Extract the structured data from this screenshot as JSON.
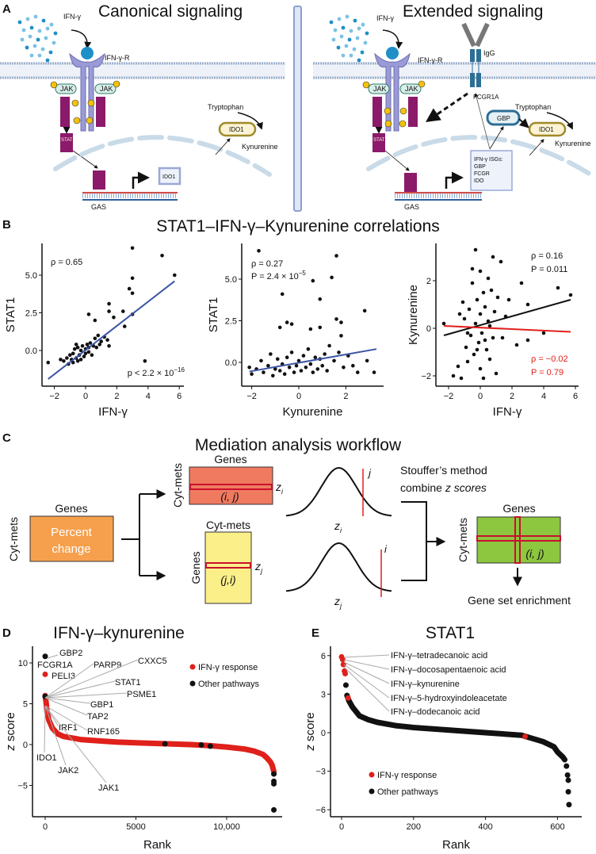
{
  "panel_a": {
    "letter": "A",
    "left_title": "Canonical signaling",
    "right_title": "Extended signaling",
    "ifng": "IFN-γ",
    "ifngr": "IFN-γ-R",
    "jak": "JAK",
    "stat1": "STAT1",
    "p": "P",
    "tryptophan": "Tryptophan",
    "ido1": "IDO1",
    "kynurenine": "Kynurenine",
    "gas": "GAS",
    "igg": "IgG",
    "fcgr1a": "FCGR1A",
    "gbp": "GBP",
    "isgs": [
      "IFN-γ ISGs:",
      "GBP",
      "FCGR",
      "IDO"
    ],
    "colors": {
      "receptor": "#9a9ad6",
      "ifng": "#1f8fc8",
      "stat": "#8b1a6b",
      "ido_border": "#a08a2a",
      "fcgr": "#2d6e94",
      "nucleus": "#c9dbe8"
    }
  },
  "panel_b": {
    "letter": "B",
    "title": "STAT1–IFN-γ–Kynurenine correlations"
  },
  "panel_c": {
    "letter": "C",
    "title": "Mediation analysis workflow",
    "genes": "Genes",
    "cyt_mets": "Cyt-mets",
    "percent_change": [
      "Percent",
      "change"
    ],
    "ij": "(i, j)",
    "ji": "(j,i)",
    "zi": "z",
    "zi_sub": "i",
    "zj_sub": "j",
    "i": "i",
    "j": "j",
    "stouffer": [
      "Stouffer’s method",
      "combine "
    ],
    "z_scores": "z scores",
    "enrichment": "Gene set enrichment",
    "colors": {
      "orange": "#f6a04d",
      "red": "#f07a60",
      "yellow": "#fbef8a",
      "green": "#8dc63f",
      "highlight": "#c8102e"
    }
  },
  "panel_d": {
    "letter": "D",
    "title": "IFN-γ–kynurenine"
  },
  "panel_e": {
    "letter": "E",
    "title": "STAT1"
  },
  "chart_data": [
    {
      "id": "b1",
      "type": "scatter",
      "xlabel": "IFN-γ",
      "ylabel": "STAT1",
      "xticks": [
        -2,
        0,
        2,
        4,
        6
      ],
      "yticks": [
        0.0,
        2.5,
        5.0
      ],
      "ytick_labels": [
        "0.0",
        "2.5",
        "5.0"
      ],
      "xlim": [
        -2.5,
        6
      ],
      "ylim": [
        -2.4,
        7
      ],
      "annotations": [
        {
          "text": "ρ = 0.65",
          "color": "#111"
        },
        {
          "text": "p < 2.2 × 10",
          "sup": "−16",
          "color": "#111"
        }
      ],
      "fit_lines": [
        {
          "color": "#3b55a5",
          "points": [
            [
              -2.4,
              -1.9
            ],
            [
              5.7,
              4.6
            ]
          ]
        }
      ],
      "points": [
        [
          -2.4,
          -0.8
        ],
        [
          -1.4,
          -0.7
        ],
        [
          -1.2,
          -0.5
        ],
        [
          -1.1,
          -0.9
        ],
        [
          -1,
          -0.3
        ],
        [
          -0.9,
          -0.6
        ],
        [
          -0.8,
          -0.8
        ],
        [
          -0.8,
          -0.2
        ],
        [
          -0.7,
          0.1
        ],
        [
          -0.6,
          -0.5
        ],
        [
          -0.5,
          -0.7
        ],
        [
          -0.5,
          0.2
        ],
        [
          -0.4,
          -0.3
        ],
        [
          -0.3,
          0
        ],
        [
          -0.3,
          -0.6
        ],
        [
          -0.2,
          0.3
        ],
        [
          -0.1,
          -0.4
        ],
        [
          0,
          0.1
        ],
        [
          0,
          -0.2
        ],
        [
          0.1,
          0.4
        ],
        [
          0.2,
          -0.1
        ],
        [
          0.2,
          0.2
        ],
        [
          0.3,
          0.5
        ],
        [
          0.4,
          -0.3
        ],
        [
          0.5,
          0.3
        ],
        [
          0.6,
          0.8
        ],
        [
          0.7,
          0.2
        ],
        [
          0.8,
          1
        ],
        [
          1,
          0.6
        ],
        [
          1.2,
          0.9
        ],
        [
          1.4,
          0.7
        ],
        [
          1.5,
          0.3
        ],
        [
          0.2,
          2.4
        ],
        [
          0.6,
          2
        ],
        [
          1.5,
          3.1
        ],
        [
          1.5,
          2.6
        ],
        [
          1.8,
          2.2
        ],
        [
          2.4,
          2.6
        ],
        [
          2.5,
          1.6
        ],
        [
          3,
          2.4
        ],
        [
          2.8,
          4.1
        ],
        [
          3,
          3.8
        ],
        [
          3,
          4.8
        ],
        [
          3,
          6.8
        ],
        [
          4.9,
          6.3
        ],
        [
          5.7,
          5.0
        ],
        [
          3.8,
          -0.7
        ],
        [
          -1.6,
          -0.6
        ],
        [
          -0.6,
          0.4
        ],
        [
          0.9,
          0.4
        ]
      ]
    },
    {
      "id": "b2",
      "type": "scatter",
      "xlabel": "Kynurenine",
      "ylabel": "STAT1",
      "xticks": [
        -2,
        0,
        2
      ],
      "yticks": [
        0.0,
        2.5,
        5.0
      ],
      "ytick_labels": [
        "0.0",
        "2.5",
        "5.0"
      ],
      "xlim": [
        -2.2,
        3.4
      ],
      "ylim": [
        -1.4,
        7
      ],
      "annotations": [
        {
          "text": "ρ = 0.27",
          "color": "#111"
        },
        {
          "text": "P = 2.4 × 10",
          "sup": "−5",
          "color": "#111"
        }
      ],
      "fit_lines": [
        {
          "color": "#3b55a5",
          "points": [
            [
              -2.1,
              -0.55
            ],
            [
              3.3,
              0.8
            ]
          ]
        }
      ],
      "points": [
        [
          -2.1,
          -0.3
        ],
        [
          -2,
          -0.7
        ],
        [
          -1.8,
          -0.4
        ],
        [
          -1.6,
          0.1
        ],
        [
          -1.5,
          -0.6
        ],
        [
          -1.3,
          -0.2
        ],
        [
          -1.2,
          0.5
        ],
        [
          -1.1,
          -0.8
        ],
        [
          -1,
          -0.4
        ],
        [
          -0.9,
          0.2
        ],
        [
          -0.8,
          -0.5
        ],
        [
          -0.7,
          -0.1
        ],
        [
          -0.6,
          -0.7
        ],
        [
          -0.5,
          0.3
        ],
        [
          -0.4,
          -0.3
        ],
        [
          -0.3,
          0.6
        ],
        [
          -0.2,
          -0.6
        ],
        [
          -0.1,
          -0.2
        ],
        [
          0,
          0.1
        ],
        [
          0.1,
          -0.5
        ],
        [
          0.2,
          0.4
        ],
        [
          0.3,
          -0.3
        ],
        [
          0.4,
          0.8
        ],
        [
          0.5,
          -0.1
        ],
        [
          0.6,
          -0.6
        ],
        [
          0.7,
          0.3
        ],
        [
          0.8,
          -0.4
        ],
        [
          0.9,
          0.2
        ],
        [
          1,
          -0.2
        ],
        [
          1.1,
          0.5
        ],
        [
          1.2,
          -0.5
        ],
        [
          1.3,
          1
        ],
        [
          1.5,
          0.1
        ],
        [
          1.7,
          0.6
        ],
        [
          1.9,
          -0.3
        ],
        [
          2.1,
          0.4
        ],
        [
          2.3,
          -0.2
        ],
        [
          2.5,
          -0.6
        ],
        [
          -1.7,
          6.7
        ],
        [
          1.6,
          6.4
        ],
        [
          1.4,
          5.1
        ],
        [
          0.6,
          4.9
        ],
        [
          -0.7,
          4.1
        ],
        [
          0.9,
          3.8
        ],
        [
          -0.5,
          2.4
        ],
        [
          -0.3,
          2.3
        ],
        [
          -0.8,
          2.1
        ],
        [
          0.5,
          2.0
        ],
        [
          0.9,
          2.1
        ],
        [
          1.6,
          2.6
        ],
        [
          1.8,
          2.4
        ],
        [
          1.8,
          1.6
        ],
        [
          2.8,
          3.1
        ],
        [
          3.2,
          -0.6
        ],
        [
          2.9,
          0.1
        ]
      ]
    },
    {
      "id": "b3",
      "type": "scatter",
      "xlabel": "IFN-γ",
      "ylabel": "Kynurenine",
      "xticks": [
        -2,
        0,
        2,
        4,
        6
      ],
      "yticks": [
        -2,
        0,
        2
      ],
      "ytick_labels": [
        "−2",
        "0",
        "2"
      ],
      "xlim": [
        -2.5,
        6
      ],
      "ylim": [
        -2.4,
        3.6
      ],
      "annotations": [
        {
          "text": "ρ = 0.16",
          "color": "#111"
        },
        {
          "text": "P = 0.011",
          "color": "#111"
        },
        {
          "text": "ρ = −0.02",
          "color": "#e0201b"
        },
        {
          "text": "P = 0.79",
          "color": "#e0201b"
        }
      ],
      "fit_lines": [
        {
          "color": "#111111",
          "points": [
            [
              -2.3,
              -0.3
            ],
            [
              5.7,
              1.2
            ]
          ]
        },
        {
          "color": "#e0201b",
          "points": [
            [
              -2.3,
              0.1
            ],
            [
              5.7,
              -0.15
            ]
          ]
        }
      ],
      "points": [
        [
          -1.7,
          -2
        ],
        [
          -1.4,
          -1.6
        ],
        [
          -1.2,
          -2.1
        ],
        [
          -1.1,
          1.1
        ],
        [
          -1,
          0.4
        ],
        [
          -0.9,
          -0.8
        ],
        [
          -0.8,
          -1.4
        ],
        [
          -0.7,
          0.8
        ],
        [
          -0.6,
          -0.3
        ],
        [
          -0.5,
          1.9
        ],
        [
          -0.5,
          2.5
        ],
        [
          -0.4,
          -1.1
        ],
        [
          -0.3,
          0.2
        ],
        [
          -0.3,
          3.3
        ],
        [
          -0.2,
          1.2
        ],
        [
          -0.1,
          -0.6
        ],
        [
          0,
          2.4
        ],
        [
          0,
          0.6
        ],
        [
          0,
          -1.7
        ],
        [
          0.1,
          -0.2
        ],
        [
          0.2,
          1.5
        ],
        [
          0.2,
          -2.1
        ],
        [
          0.3,
          0.9
        ],
        [
          0.4,
          -0.9
        ],
        [
          0.5,
          0.3
        ],
        [
          0.5,
          2.1
        ],
        [
          0.6,
          -1.3
        ],
        [
          0.7,
          1.6
        ],
        [
          0.8,
          -0.4
        ],
        [
          0.8,
          3
        ],
        [
          0.9,
          0.7
        ],
        [
          1,
          -1.9
        ],
        [
          1.1,
          1.3
        ],
        [
          1.3,
          2.8
        ],
        [
          1.4,
          -0.4
        ],
        [
          1.6,
          0.5
        ],
        [
          2.3,
          -0.7
        ],
        [
          2.6,
          1.9
        ],
        [
          3,
          1
        ],
        [
          3,
          -0.5
        ],
        [
          4,
          -0.2
        ],
        [
          4.9,
          1.7
        ],
        [
          5.7,
          1.4
        ],
        [
          -2.3,
          0.2
        ],
        [
          -1.3,
          0.6
        ],
        [
          -0.8,
          -0.2
        ],
        [
          0.3,
          -0.5
        ],
        [
          1.8,
          1.2
        ],
        [
          -0.2,
          -0.9
        ],
        [
          0.6,
          0.1
        ]
      ]
    },
    {
      "id": "d",
      "type": "scatter",
      "title": "IFN-γ–kynurenine",
      "xlabel": "Rank",
      "ylabel": "z score",
      "xticks": [
        0,
        5000,
        10000
      ],
      "xtick_labels": [
        "0",
        "5000",
        "10,000"
      ],
      "yticks": [
        -5,
        0,
        5,
        10
      ],
      "ytick_labels": [
        "−5",
        "0",
        "5",
        "10"
      ],
      "xlim": [
        -700,
        13100
      ],
      "ylim": [
        -8.9,
        11.8
      ],
      "legend": {
        "position": "top-right",
        "entries": [
          {
            "label": "IFN-γ response",
            "color": "#e0201b"
          },
          {
            "label": "Other pathways",
            "color": "#111111"
          }
        ]
      },
      "curve": [
        [
          0,
          6
        ],
        [
          30,
          5.5
        ],
        [
          60,
          5
        ],
        [
          100,
          4
        ],
        [
          200,
          3
        ],
        [
          400,
          2
        ],
        [
          700,
          1.3
        ],
        [
          1000,
          1
        ],
        [
          2000,
          0.6
        ],
        [
          3000,
          0.45
        ],
        [
          4000,
          0.3
        ],
        [
          5000,
          0.22
        ],
        [
          6000,
          0.15
        ],
        [
          7000,
          0.08
        ],
        [
          8000,
          0
        ],
        [
          9000,
          -0.12
        ],
        [
          10000,
          -0.3
        ],
        [
          11000,
          -0.55
        ],
        [
          11500,
          -0.8
        ],
        [
          12000,
          -1.2
        ],
        [
          12200,
          -1.6
        ],
        [
          12400,
          -2.1
        ],
        [
          12500,
          -2.5
        ],
        [
          12600,
          -3.3
        ]
      ],
      "points": [
        {
          "rank": 0,
          "z": 10.8,
          "group": "Other pathways"
        },
        {
          "rank": 0,
          "z": 8.6,
          "group": "IFN-γ response"
        },
        {
          "rank": 0,
          "z": 5.9,
          "group": "Other pathways"
        },
        {
          "rank": 6600,
          "z": 0.1,
          "group": "Other pathways"
        },
        {
          "rank": 8600,
          "z": -0.05,
          "group": "Other pathways"
        },
        {
          "rank": 9100,
          "z": -0.2,
          "group": "Other pathways"
        },
        {
          "rank": 12600,
          "z": -3.6,
          "group": "Other pathways"
        },
        {
          "rank": 12600,
          "z": -4.5,
          "group": "Other pathways"
        },
        {
          "rank": 12600,
          "z": -4.8,
          "group": "Other pathways"
        },
        {
          "rank": 12600,
          "z": -8.0,
          "group": "Other pathways"
        }
      ],
      "gene_labels": [
        "GBP2",
        "FCGR1A",
        "PELI3",
        "PARP9",
        "CXXC5",
        "STAT1",
        "PSME1",
        "GBP1",
        "TAP2",
        "IRF1",
        "RNF165",
        "IDO1",
        "JAK2",
        "JAK1"
      ]
    },
    {
      "id": "e",
      "type": "scatter",
      "title": "STAT1",
      "xlabel": "Rank",
      "ylabel": "z score",
      "xticks": [
        0,
        200,
        400,
        600
      ],
      "xtick_labels": [
        "0",
        "200",
        "400",
        "600"
      ],
      "yticks": [
        -6,
        -3,
        0,
        3,
        6
      ],
      "ytick_labels": [
        "−6",
        "−3",
        "0",
        "3",
        "6"
      ],
      "xlim": [
        -30,
        670
      ],
      "ylim": [
        -6.6,
        6.5
      ],
      "legend": {
        "position": "bottom-left",
        "entries": [
          {
            "label": "IFN-γ response",
            "color": "#e0201b"
          },
          {
            "label": "Other pathways",
            "color": "#111111"
          }
        ]
      },
      "curve": [
        [
          15,
          2.9
        ],
        [
          20,
          2.5
        ],
        [
          30,
          2
        ],
        [
          50,
          1.3
        ],
        [
          75,
          1
        ],
        [
          100,
          0.8
        ],
        [
          150,
          0.55
        ],
        [
          200,
          0.4
        ],
        [
          300,
          0.2
        ],
        [
          400,
          0
        ],
        [
          500,
          -0.2
        ],
        [
          560,
          -0.7
        ],
        [
          590,
          -1.1
        ],
        [
          600,
          -1.5
        ],
        [
          615,
          -1.9
        ],
        [
          620,
          -2.1
        ]
      ],
      "points": [
        {
          "rank": 0,
          "z": 5.9,
          "group": "IFN-γ response"
        },
        {
          "rank": 3,
          "z": 5.7,
          "group": "IFN-γ response"
        },
        {
          "rank": 5,
          "z": 5.3,
          "group": "IFN-γ response"
        },
        {
          "rank": 8,
          "z": 4.8,
          "group": "IFN-γ response"
        },
        {
          "rank": 10,
          "z": 4.6,
          "group": "IFN-γ response"
        },
        {
          "rank": 12,
          "z": 3.7,
          "group": "Other pathways"
        },
        {
          "rank": 18,
          "z": 2.7,
          "group": "IFN-γ response"
        },
        {
          "rank": 510,
          "z": -0.3,
          "group": "IFN-γ response"
        },
        {
          "rank": 625,
          "z": -2.6,
          "group": "Other pathways"
        },
        {
          "rank": 628,
          "z": -3.3,
          "group": "Other pathways"
        },
        {
          "rank": 630,
          "z": -3.7,
          "group": "Other pathways"
        },
        {
          "rank": 630,
          "z": -4.6,
          "group": "Other pathways"
        },
        {
          "rank": 632,
          "z": -5.6,
          "group": "Other pathways"
        }
      ],
      "pair_labels": [
        "IFN-γ–tetradecanoic acid",
        "IFN-γ–docosapentaenoic acid",
        "IFN-γ–kynurenine",
        "IFN-γ–5-hydroxyindoleacetate",
        "IFN-γ–dodecanoic acid"
      ]
    }
  ]
}
